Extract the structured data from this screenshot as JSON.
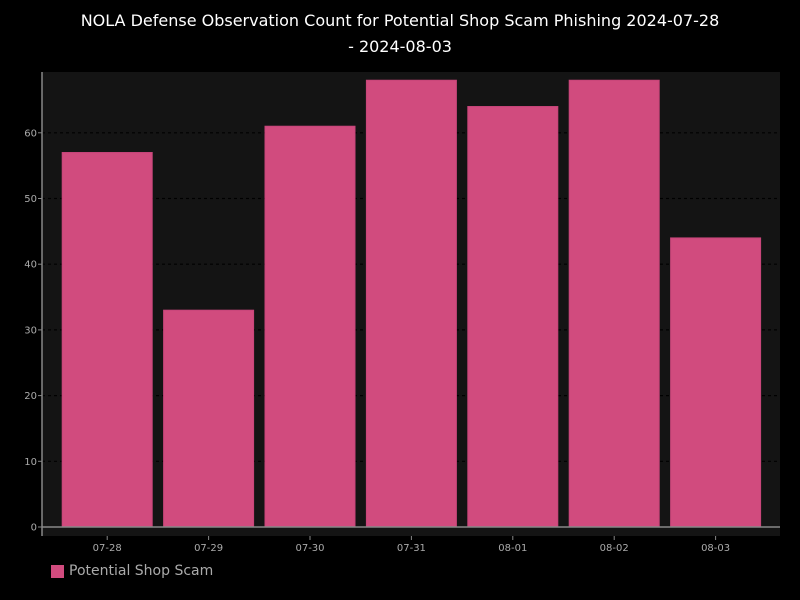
{
  "chart_data": {
    "type": "bar",
    "title_lines": [
      "NOLA Defense Observation Count for Potential Shop Scam Phishing 2024-07-28",
      "- 2024-08-03"
    ],
    "categories": [
      "07-28",
      "07-29",
      "07-30",
      "07-31",
      "08-01",
      "08-02",
      "08-03"
    ],
    "series": [
      {
        "name": "Potential Shop Scam",
        "values": [
          57,
          33,
          61,
          68,
          64,
          68,
          44
        ]
      }
    ],
    "y_ticks": [
      "0",
      "10",
      "20",
      "30",
      "40",
      "50",
      "60"
    ],
    "ylim": [
      0,
      70
    ],
    "grid": true,
    "legend_position": "bottom-left",
    "colors": {
      "bar": "#d14b7e",
      "plot_background": "#141414",
      "page_background": "#000000",
      "grid": "#000000",
      "tick_label": "#aaaaaa",
      "title": "#ffffff"
    }
  }
}
